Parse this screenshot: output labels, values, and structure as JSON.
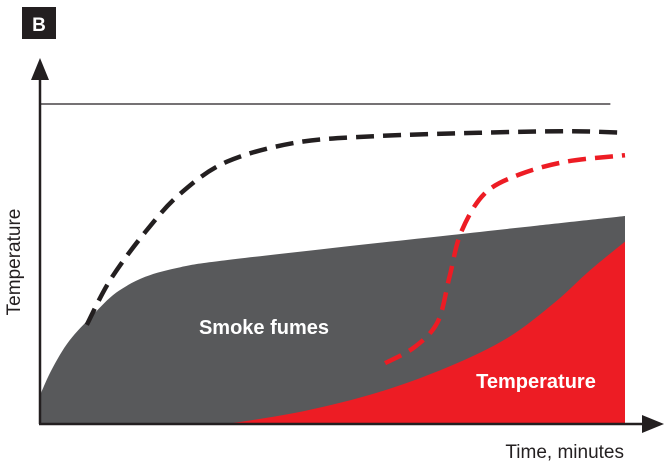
{
  "panel_label": "B",
  "chart_data": {
    "type": "area",
    "xlabel": "Time, minutes",
    "ylabel": "Temperature",
    "grid": false,
    "legend": "none",
    "areas": [
      {
        "label": "Smoke fumes",
        "color": "#58595b",
        "points": [
          [
            0.0,
            0.09
          ],
          [
            0.02,
            0.17
          ],
          [
            0.05,
            0.26
          ],
          [
            0.09,
            0.34
          ],
          [
            0.13,
            0.41
          ],
          [
            0.18,
            0.46
          ],
          [
            0.24,
            0.49
          ],
          [
            0.31,
            0.51
          ],
          [
            0.5,
            0.55
          ],
          [
            0.7,
            0.59
          ],
          [
            0.85,
            0.62
          ],
          [
            1.0,
            0.65
          ]
        ]
      },
      {
        "label": "Temperature",
        "color": "#ed1c24",
        "points": [
          [
            0.32,
            0.0
          ],
          [
            0.45,
            0.04
          ],
          [
            0.58,
            0.1
          ],
          [
            0.7,
            0.18
          ],
          [
            0.8,
            0.27
          ],
          [
            0.88,
            0.38
          ],
          [
            0.94,
            0.48
          ],
          [
            1.0,
            0.57
          ]
        ]
      }
    ],
    "dashed_lines": [
      {
        "color": "#231f20",
        "points": [
          [
            0.08,
            0.31
          ],
          [
            0.12,
            0.45
          ],
          [
            0.18,
            0.6
          ],
          [
            0.24,
            0.72
          ],
          [
            0.32,
            0.82
          ],
          [
            0.44,
            0.88
          ],
          [
            0.58,
            0.9
          ],
          [
            0.75,
            0.91
          ],
          [
            0.9,
            0.915
          ],
          [
            1.0,
            0.91
          ]
        ]
      },
      {
        "color": "#ed1c24",
        "points": [
          [
            0.59,
            0.19
          ],
          [
            0.64,
            0.24
          ],
          [
            0.68,
            0.32
          ],
          [
            0.7,
            0.46
          ],
          [
            0.72,
            0.6
          ],
          [
            0.76,
            0.72
          ],
          [
            0.82,
            0.78
          ],
          [
            0.9,
            0.82
          ],
          [
            1.0,
            0.84
          ]
        ]
      }
    ],
    "reference_line": {
      "y": 1.0,
      "x_end": 0.975
    }
  }
}
